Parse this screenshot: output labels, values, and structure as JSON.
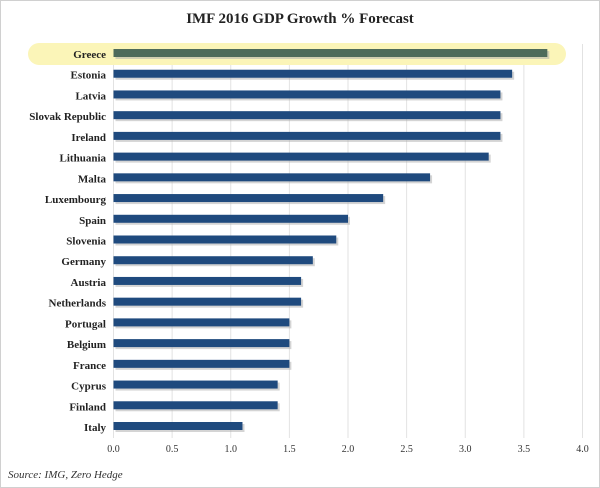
{
  "chart_data": {
    "type": "bar",
    "orientation": "horizontal",
    "title": "IMF 2016 GDP Growth % Forecast",
    "source": "Source: IMG, Zero Hedge",
    "categories": [
      "Greece",
      "Estonia",
      "Latvia",
      "Slovak Republic",
      "Ireland",
      "Lithuania",
      "Malta",
      "Luxembourg",
      "Spain",
      "Slovenia",
      "Germany",
      "Austria",
      "Netherlands",
      "Portugal",
      "Belgium",
      "France",
      "Cyprus",
      "Finland",
      "Italy"
    ],
    "values": [
      3.7,
      3.4,
      3.3,
      3.3,
      3.3,
      3.2,
      2.7,
      2.3,
      2.0,
      1.9,
      1.7,
      1.6,
      1.6,
      1.5,
      1.5,
      1.5,
      1.4,
      1.4,
      1.1
    ],
    "highlighted": "Greece",
    "xlim": [
      0,
      4
    ],
    "xticks": [
      "0.0",
      "0.5",
      "1.0",
      "1.5",
      "2.0",
      "2.5",
      "3.0",
      "3.5",
      "4.0"
    ],
    "grid": true,
    "colors": {
      "bar": "#1f4a7e",
      "highlight_bar": "#4e6b5a",
      "highlight_band": "#fbf5b8",
      "grid": "#e2e2e2"
    }
  }
}
